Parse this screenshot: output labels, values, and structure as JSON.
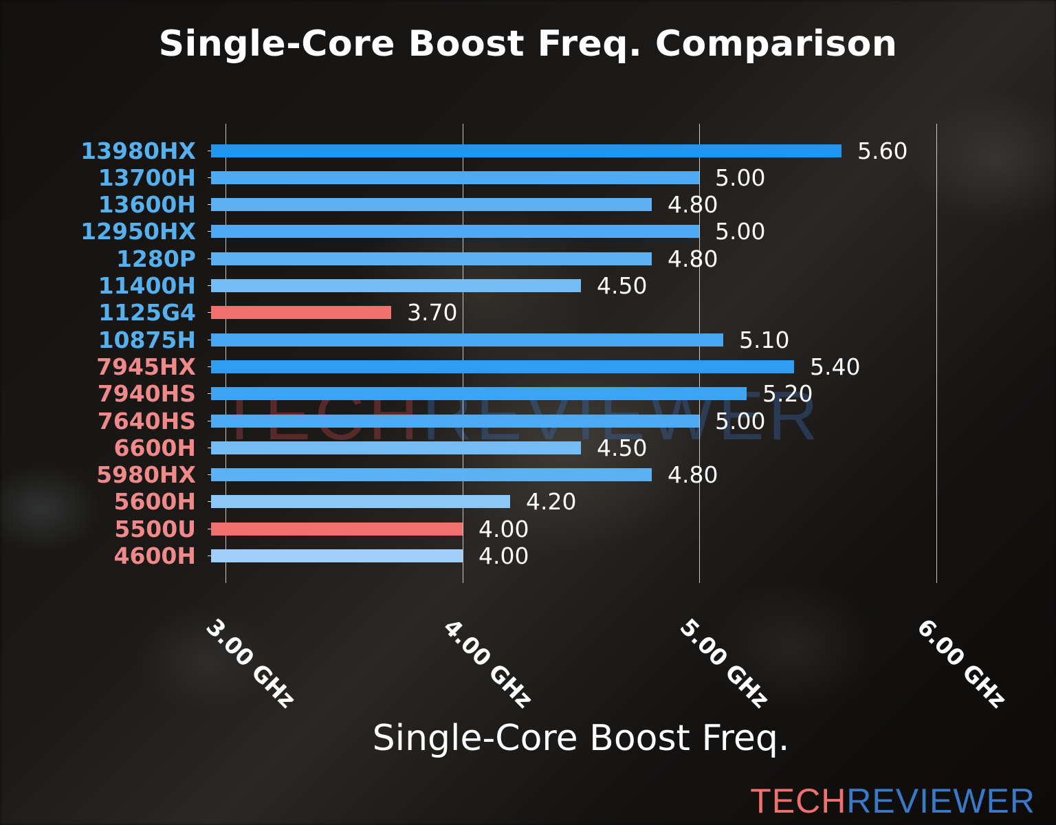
{
  "chart_data": {
    "type": "bar",
    "orientation": "horizontal",
    "title": "Single-Core Boost Freq. Comparison",
    "xlabel": "Single-Core Boost Freq.",
    "ylabel": "",
    "xlim": [
      2.94,
      6.0
    ],
    "x_ticks": [
      "3.00 GHz",
      "4.00 GHz",
      "5.00 GHz",
      "6.00 GHz"
    ],
    "grid": "vertical",
    "categories": [
      "13980HX",
      "13700H",
      "13600H",
      "12950HX",
      "1280P",
      "11400H",
      "1125G4",
      "10875H",
      "7945HX",
      "7940HS",
      "7640HS",
      "6600H",
      "5980HX",
      "5600H",
      "5500U",
      "4600H"
    ],
    "values": [
      5.6,
      5.0,
      4.8,
      5.0,
      4.8,
      4.5,
      3.7,
      5.1,
      5.4,
      5.2,
      5.0,
      4.5,
      4.8,
      4.2,
      4.0,
      4.0
    ],
    "value_labels": [
      "5.60",
      "5.00",
      "4.80",
      "5.00",
      "4.80",
      "4.50",
      "3.70",
      "5.10",
      "5.40",
      "5.20",
      "5.00",
      "4.50",
      "4.80",
      "4.20",
      "4.00",
      "4.00"
    ],
    "label_colors": [
      "#56b0ee",
      "#56b0ee",
      "#56b0ee",
      "#56b0ee",
      "#56b0ee",
      "#56b0ee",
      "#56b0ee",
      "#56b0ee",
      "#f08a8a",
      "#f08a8a",
      "#f08a8a",
      "#f08a8a",
      "#f08a8a",
      "#f08a8a",
      "#f08a8a",
      "#f08a8a"
    ],
    "bar_colors": [
      "#2196f0",
      "#4eaaf3",
      "#5cb1f4",
      "#4eaaf3",
      "#5cb1f4",
      "#74bcf6",
      "#f07070",
      "#48a7f3",
      "#2f9df1",
      "#3ea3f2",
      "#4eaaf3",
      "#74bcf6",
      "#5cb1f4",
      "#8ec8f8",
      "#f07070",
      "#a0d0fa"
    ]
  },
  "branding": {
    "watermark_part1": "TECH",
    "watermark_part2": "REVIEWER",
    "logo_part1": "TECH",
    "logo_part2": "REVIEWER",
    "logo_color1": "#f07070",
    "logo_color2": "#3a78c8"
  }
}
